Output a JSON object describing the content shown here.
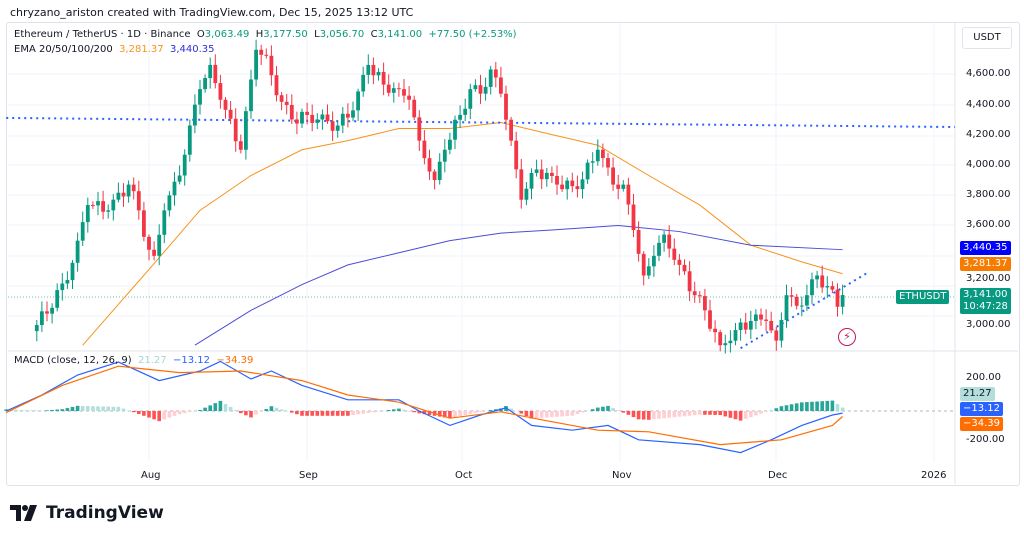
{
  "credit": "chryzano_ariston created with TradingView.com, Dec 15, 2025 13:12 UTC",
  "legend": {
    "symbol": "Ethereum / TetherUS · 1D · Binance",
    "o_label": "O",
    "o": "3,063.49",
    "h_label": "H",
    "h": "3,177.50",
    "l_label": "L",
    "l": "3,056.70",
    "c_label": "C",
    "c": "3,141.00",
    "change": "+77.50 (+2.53%)",
    "ema_label": "EMA 20/50/100/200",
    "ema1": "3,281.37",
    "ema2": "3,440.35"
  },
  "macd_legend": {
    "label": "MACD (close, 12, 26, 9)",
    "hist": "21.27",
    "macd": "−13.12",
    "signal": "−34.39"
  },
  "axis": {
    "unit": "USDT",
    "price_ticks": [
      "4,600.00",
      "4,400.00",
      "4,200.00",
      "4,000.00",
      "3,800.00",
      "3,600.00",
      "3,200.00",
      "3,000.00"
    ],
    "macd_ticks": [
      "200.00",
      "-200.00"
    ],
    "time_ticks": [
      "Aug",
      "Sep",
      "Oct",
      "Nov",
      "Dec",
      "2026"
    ]
  },
  "badges": {
    "ema200": "3,440.35",
    "ema50": "3,281.37",
    "symbol": "ETHUSDT",
    "price": "3,141.00",
    "countdown": "10:47:28",
    "hist": "21.27",
    "macd": "−13.12",
    "signal": "−34.39"
  },
  "colors": {
    "up": "#089981",
    "down": "#f23645",
    "ema_orange": "#f7931a",
    "ema_blue": "#4c4cd8",
    "macd": "#2962ff",
    "signal": "#ff6d00",
    "trendline": "#2962ff"
  },
  "brand": "TradingView",
  "chart_data": {
    "type": "candlestick",
    "title": "Ethereum / TetherUS · 1D · Binance",
    "ylim": [
      2750,
      4800
    ],
    "closes": [
      [
        "2025-07-10",
        2943
      ],
      [
        "2025-07-16",
        3240
      ],
      [
        "2025-07-18",
        3500
      ],
      [
        "2025-07-20",
        3735
      ],
      [
        "2025-07-24",
        3700
      ],
      [
        "2025-07-28",
        3870
      ],
      [
        "2025-07-30",
        3700
      ],
      [
        "2025-08-01",
        3440
      ],
      [
        "2025-08-02",
        3400
      ],
      [
        "2025-08-04",
        3700
      ],
      [
        "2025-08-07",
        3930
      ],
      [
        "2025-08-09",
        4260
      ],
      [
        "2025-08-11",
        4500
      ],
      [
        "2025-08-13",
        4660
      ],
      [
        "2025-08-15",
        4430
      ],
      [
        "2025-08-19",
        4100
      ],
      [
        "2025-08-22",
        4760
      ],
      [
        "2025-08-24",
        4720
      ],
      [
        "2025-08-26",
        4460
      ],
      [
        "2025-08-29",
        4300
      ],
      [
        "2025-09-01",
        4330
      ],
      [
        "2025-09-03",
        4300
      ],
      [
        "2025-09-07",
        4260
      ],
      [
        "2025-09-10",
        4360
      ],
      [
        "2025-09-13",
        4660
      ],
      [
        "2025-09-16",
        4530
      ],
      [
        "2025-09-19",
        4500
      ],
      [
        "2025-09-21",
        4430
      ],
      [
        "2025-09-23",
        4160
      ],
      [
        "2025-09-26",
        3900
      ],
      [
        "2025-09-28",
        4100
      ],
      [
        "2025-10-01",
        4330
      ],
      [
        "2025-10-03",
        4500
      ],
      [
        "2025-10-05",
        4470
      ],
      [
        "2025-10-07",
        4630
      ],
      [
        "2025-10-09",
        4470
      ],
      [
        "2025-10-11",
        4160
      ],
      [
        "2025-10-13",
        3770
      ],
      [
        "2025-10-16",
        3970
      ],
      [
        "2025-10-20",
        3870
      ],
      [
        "2025-10-24",
        3840
      ],
      [
        "2025-10-28",
        4100
      ],
      [
        "2025-10-31",
        3870
      ],
      [
        "2025-11-02",
        3870
      ],
      [
        "2025-11-04",
        3570
      ],
      [
        "2025-11-06",
        3270
      ],
      [
        "2025-11-08",
        3400
      ],
      [
        "2025-11-10",
        3540
      ],
      [
        "2025-11-13",
        3340
      ],
      [
        "2025-11-16",
        3140
      ],
      [
        "2025-11-18",
        3040
      ],
      [
        "2025-11-21",
        2810
      ],
      [
        "2025-11-24",
        2910
      ],
      [
        "2025-11-27",
        2970
      ],
      [
        "2025-11-30",
        2970
      ],
      [
        "2025-12-02",
        2840
      ],
      [
        "2025-12-04",
        3140
      ],
      [
        "2025-12-06",
        3070
      ],
      [
        "2025-12-08",
        3140
      ],
      [
        "2025-12-10",
        3270
      ],
      [
        "2025-12-12",
        3200
      ],
      [
        "2025-12-14",
        3063.49
      ],
      [
        "2025-12-15",
        3141
      ]
    ],
    "ema_orange": [
      [
        "2025-07-19",
        2810
      ],
      [
        "2025-08-01",
        3310
      ],
      [
        "2025-08-11",
        3700
      ],
      [
        "2025-08-21",
        3930
      ],
      [
        "2025-08-31",
        4100
      ],
      [
        "2025-09-09",
        4160
      ],
      [
        "2025-09-19",
        4240
      ],
      [
        "2025-09-29",
        4240
      ],
      [
        "2025-10-09",
        4280
      ],
      [
        "2025-10-19",
        4200
      ],
      [
        "2025-10-28",
        4130
      ],
      [
        "2025-11-07",
        3930
      ],
      [
        "2025-11-17",
        3735
      ],
      [
        "2025-11-27",
        3470
      ],
      [
        "2025-12-07",
        3360
      ],
      [
        "2025-12-15",
        3281.37
      ]
    ],
    "ema_blue": [
      [
        "2025-08-10",
        2810
      ],
      [
        "2025-08-21",
        3040
      ],
      [
        "2025-08-31",
        3210
      ],
      [
        "2025-09-09",
        3340
      ],
      [
        "2025-09-19",
        3420
      ],
      [
        "2025-09-29",
        3500
      ],
      [
        "2025-10-09",
        3550
      ],
      [
        "2025-10-19",
        3570
      ],
      [
        "2025-11-01",
        3600
      ],
      [
        "2025-11-13",
        3560
      ],
      [
        "2025-11-27",
        3470
      ],
      [
        "2025-12-15",
        3440.35
      ]
    ],
    "trendlines": [
      {
        "style": "dotted",
        "points": [
          [
            "2025-07-04",
            4310
          ],
          [
            "2026-01-06",
            4250
          ]
        ]
      },
      {
        "style": "dotted",
        "points": [
          [
            "2025-11-25",
            2790
          ],
          [
            "2025-12-20",
            3290
          ]
        ]
      }
    ],
    "macd": {
      "ylim": [
        -300,
        350
      ],
      "macd_line": [
        [
          "2025-07-04",
          0
        ],
        [
          "2025-07-11",
          100
        ],
        [
          "2025-07-18",
          225
        ],
        [
          "2025-07-26",
          306
        ],
        [
          "2025-08-03",
          190
        ],
        [
          "2025-08-11",
          250
        ],
        [
          "2025-08-15",
          310
        ],
        [
          "2025-08-21",
          200
        ],
        [
          "2025-08-25",
          250
        ],
        [
          "2025-08-31",
          160
        ],
        [
          "2025-09-09",
          70
        ],
        [
          "2025-09-19",
          70
        ],
        [
          "2025-09-23",
          0
        ],
        [
          "2025-09-29",
          -90
        ],
        [
          "2025-10-05",
          -25
        ],
        [
          "2025-10-10",
          20
        ],
        [
          "2025-10-15",
          -90
        ],
        [
          "2025-10-23",
          -120
        ],
        [
          "2025-10-30",
          -90
        ],
        [
          "2025-11-05",
          -180
        ],
        [
          "2025-11-17",
          -210
        ],
        [
          "2025-11-25",
          -260
        ],
        [
          "2025-12-01",
          -180
        ],
        [
          "2025-12-07",
          -90
        ],
        [
          "2025-12-13",
          -25
        ],
        [
          "2025-12-15",
          -13.12
        ]
      ],
      "signal_line": [
        [
          "2025-07-04",
          -10
        ],
        [
          "2025-07-15",
          160
        ],
        [
          "2025-07-26",
          280
        ],
        [
          "2025-08-07",
          240
        ],
        [
          "2025-08-19",
          250
        ],
        [
          "2025-08-31",
          190
        ],
        [
          "2025-09-09",
          100
        ],
        [
          "2025-09-19",
          55
        ],
        [
          "2025-09-29",
          -45
        ],
        [
          "2025-10-09",
          -5
        ],
        [
          "2025-10-17",
          -55
        ],
        [
          "2025-10-28",
          -120
        ],
        [
          "2025-11-07",
          -130
        ],
        [
          "2025-11-21",
          -210
        ],
        [
          "2025-12-03",
          -180
        ],
        [
          "2025-12-13",
          -90
        ],
        [
          "2025-12-15",
          -34.39
        ]
      ]
    }
  }
}
